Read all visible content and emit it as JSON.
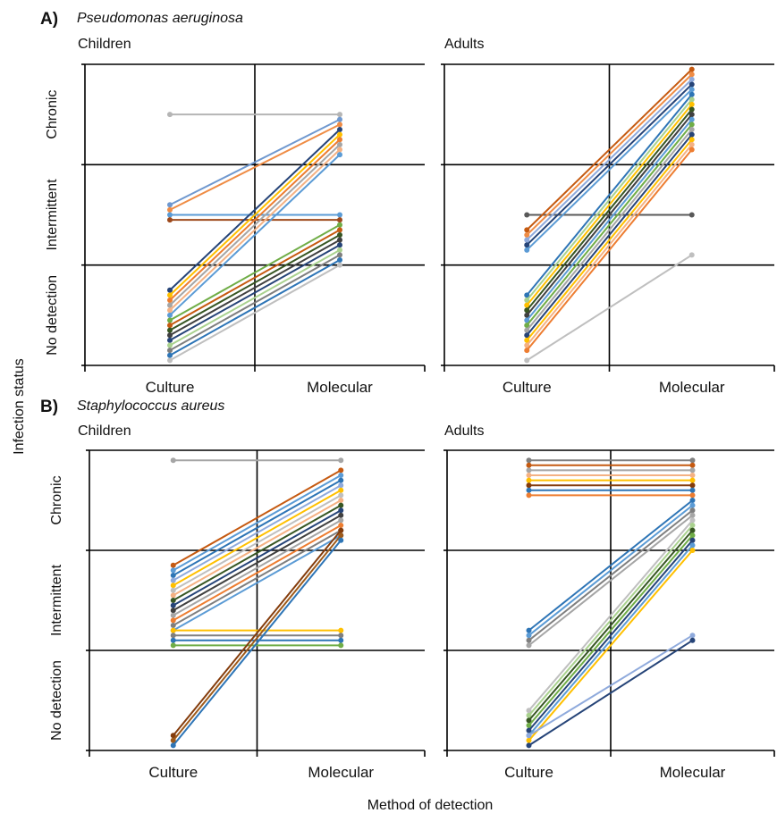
{
  "figure": {
    "y_axis_title": "Infection status",
    "x_axis_title": "Method of detection"
  },
  "sections": [
    {
      "letter": "A)",
      "organism": "Pseudomonas aeruginosa"
    },
    {
      "letter": "B)",
      "organism": "Staphylococcus aureus"
    }
  ],
  "chart_data": [
    {
      "type": "line",
      "title": "Children",
      "section": "A",
      "x": [
        "Culture",
        "Molecular"
      ],
      "y_categories": [
        "No detection",
        "Intermittent",
        "Chronic"
      ],
      "ylim": [
        0,
        3
      ],
      "grid": true,
      "series": [
        {
          "values": [
            2.5,
            2.5
          ],
          "color": "#b5b5b5"
        },
        {
          "values": [
            1.6,
            2.45
          ],
          "color": "#6f98cf"
        },
        {
          "values": [
            1.55,
            2.4
          ],
          "color": "#ef8c45"
        },
        {
          "values": [
            1.5,
            1.5
          ],
          "color": "#5b9bd5"
        },
        {
          "values": [
            1.45,
            1.45
          ],
          "color": "#9e4a1c"
        },
        {
          "values": [
            0.75,
            2.35
          ],
          "color": "#264478"
        },
        {
          "values": [
            0.7,
            2.3
          ],
          "color": "#ffc000"
        },
        {
          "values": [
            0.65,
            2.25
          ],
          "color": "#ed7d31"
        },
        {
          "values": [
            0.6,
            2.2
          ],
          "color": "#a5a5a5"
        },
        {
          "values": [
            0.55,
            2.15
          ],
          "color": "#f4b183"
        },
        {
          "values": [
            0.5,
            2.1
          ],
          "color": "#5b9bd5"
        },
        {
          "values": [
            0.45,
            1.4
          ],
          "color": "#70ad47"
        },
        {
          "values": [
            0.4,
            1.35
          ],
          "color": "#c55a11"
        },
        {
          "values": [
            0.35,
            1.3
          ],
          "color": "#375623"
        },
        {
          "values": [
            0.3,
            1.25
          ],
          "color": "#404040"
        },
        {
          "values": [
            0.25,
            1.2
          ],
          "color": "#264478"
        },
        {
          "values": [
            0.2,
            1.15
          ],
          "color": "#a9d18e"
        },
        {
          "values": [
            0.15,
            1.1
          ],
          "color": "#7f7f7f"
        },
        {
          "values": [
            0.1,
            1.05
          ],
          "color": "#2e75b6"
        },
        {
          "values": [
            0.05,
            1.0
          ],
          "color": "#bfbfbf"
        }
      ]
    },
    {
      "type": "line",
      "title": "Adults",
      "section": "A",
      "x": [
        "Culture",
        "Molecular"
      ],
      "y_categories": [
        "No detection",
        "Intermittent",
        "Chronic"
      ],
      "ylim": [
        0,
        3
      ],
      "grid": true,
      "series": [
        {
          "values": [
            1.5,
            1.5
          ],
          "color": "#595959"
        },
        {
          "values": [
            1.35,
            2.95
          ],
          "color": "#c55a11"
        },
        {
          "values": [
            1.3,
            2.9
          ],
          "color": "#ef8c45"
        },
        {
          "values": [
            1.25,
            2.85
          ],
          "color": "#8faadc"
        },
        {
          "values": [
            1.2,
            2.8
          ],
          "color": "#264478"
        },
        {
          "values": [
            1.15,
            2.75
          ],
          "color": "#5b9bd5"
        },
        {
          "values": [
            0.7,
            2.7
          ],
          "color": "#2e75b6"
        },
        {
          "values": [
            0.65,
            2.65
          ],
          "color": "#a9d18e"
        },
        {
          "values": [
            0.6,
            2.6
          ],
          "color": "#ffc000"
        },
        {
          "values": [
            0.55,
            2.55
          ],
          "color": "#375623"
        },
        {
          "values": [
            0.5,
            2.5
          ],
          "color": "#404040"
        },
        {
          "values": [
            0.45,
            2.45
          ],
          "color": "#5b9bd5"
        },
        {
          "values": [
            0.4,
            2.4
          ],
          "color": "#70ad47"
        },
        {
          "values": [
            0.35,
            2.35
          ],
          "color": "#a5a5a5"
        },
        {
          "values": [
            0.3,
            2.3
          ],
          "color": "#264478"
        },
        {
          "values": [
            0.25,
            2.25
          ],
          "color": "#ffc000"
        },
        {
          "values": [
            0.2,
            2.2
          ],
          "color": "#f4b183"
        },
        {
          "values": [
            0.15,
            2.15
          ],
          "color": "#ed7d31"
        },
        {
          "values": [
            0.05,
            1.1
          ],
          "color": "#bfbfbf"
        }
      ]
    },
    {
      "type": "line",
      "title": "Children",
      "section": "B",
      "x": [
        "Culture",
        "Molecular"
      ],
      "y_categories": [
        "No detection",
        "Intermittent",
        "Chronic"
      ],
      "ylim": [
        0,
        3
      ],
      "grid": true,
      "series": [
        {
          "values": [
            2.9,
            2.9
          ],
          "color": "#a5a5a5"
        },
        {
          "values": [
            1.85,
            2.8
          ],
          "color": "#c55a11"
        },
        {
          "values": [
            1.8,
            2.75
          ],
          "color": "#5b9bd5"
        },
        {
          "values": [
            1.75,
            2.7
          ],
          "color": "#2e75b6"
        },
        {
          "values": [
            1.7,
            2.65
          ],
          "color": "#8faadc"
        },
        {
          "values": [
            1.65,
            2.6
          ],
          "color": "#ffc000"
        },
        {
          "values": [
            1.6,
            2.55
          ],
          "color": "#bfbfbf"
        },
        {
          "values": [
            1.55,
            2.5
          ],
          "color": "#f4b183"
        },
        {
          "values": [
            1.5,
            2.45
          ],
          "color": "#375623"
        },
        {
          "values": [
            1.45,
            2.4
          ],
          "color": "#264478"
        },
        {
          "values": [
            1.4,
            2.35
          ],
          "color": "#404040"
        },
        {
          "values": [
            1.35,
            2.3
          ],
          "color": "#a5a5a5"
        },
        {
          "values": [
            1.3,
            2.25
          ],
          "color": "#ed7d31"
        },
        {
          "values": [
            1.25,
            2.2
          ],
          "color": "#7f7f7f"
        },
        {
          "values": [
            1.2,
            2.15
          ],
          "color": "#5b9bd5"
        },
        {
          "values": [
            1.2,
            1.2
          ],
          "color": "#ffc000"
        },
        {
          "values": [
            1.15,
            1.15
          ],
          "color": "#7f7f7f"
        },
        {
          "values": [
            1.1,
            1.1
          ],
          "color": "#2e75b6"
        },
        {
          "values": [
            1.05,
            1.05
          ],
          "color": "#70ad47"
        },
        {
          "values": [
            0.15,
            2.2
          ],
          "color": "#843c0c"
        },
        {
          "values": [
            0.1,
            2.15
          ],
          "color": "#9e5a1a"
        },
        {
          "values": [
            0.05,
            2.1
          ],
          "color": "#2e75b6"
        }
      ]
    },
    {
      "type": "line",
      "title": "Adults",
      "section": "B",
      "x": [
        "Culture",
        "Molecular"
      ],
      "y_categories": [
        "No detection",
        "Intermittent",
        "Chronic"
      ],
      "ylim": [
        0,
        3
      ],
      "grid": true,
      "series": [
        {
          "values": [
            2.9,
            2.9
          ],
          "color": "#7f7f7f"
        },
        {
          "values": [
            2.85,
            2.85
          ],
          "color": "#c55a11"
        },
        {
          "values": [
            2.8,
            2.8
          ],
          "color": "#a5a5a5"
        },
        {
          "values": [
            2.75,
            2.75
          ],
          "color": "#f4b183"
        },
        {
          "values": [
            2.7,
            2.7
          ],
          "color": "#ffc000"
        },
        {
          "values": [
            2.65,
            2.65
          ],
          "color": "#843c0c"
        },
        {
          "values": [
            2.6,
            2.6
          ],
          "color": "#2e75b6"
        },
        {
          "values": [
            2.55,
            2.55
          ],
          "color": "#ed7d31"
        },
        {
          "values": [
            1.2,
            2.5
          ],
          "color": "#2e75b6"
        },
        {
          "values": [
            1.15,
            2.45
          ],
          "color": "#5b9bd5"
        },
        {
          "values": [
            1.1,
            2.4
          ],
          "color": "#7f7f7f"
        },
        {
          "values": [
            1.05,
            2.35
          ],
          "color": "#a5a5a5"
        },
        {
          "values": [
            0.4,
            2.3
          ],
          "color": "#bfbfbf"
        },
        {
          "values": [
            0.35,
            2.25
          ],
          "color": "#a9d18e"
        },
        {
          "values": [
            0.3,
            2.2
          ],
          "color": "#375623"
        },
        {
          "values": [
            0.25,
            2.15
          ],
          "color": "#70ad47"
        },
        {
          "values": [
            0.2,
            2.1
          ],
          "color": "#264478"
        },
        {
          "values": [
            0.15,
            2.05
          ],
          "color": "#5b9bd5"
        },
        {
          "values": [
            0.1,
            2.0
          ],
          "color": "#ffc000"
        },
        {
          "values": [
            0.15,
            1.15
          ],
          "color": "#8faadc"
        },
        {
          "values": [
            0.05,
            1.1
          ],
          "color": "#264478"
        }
      ]
    }
  ]
}
